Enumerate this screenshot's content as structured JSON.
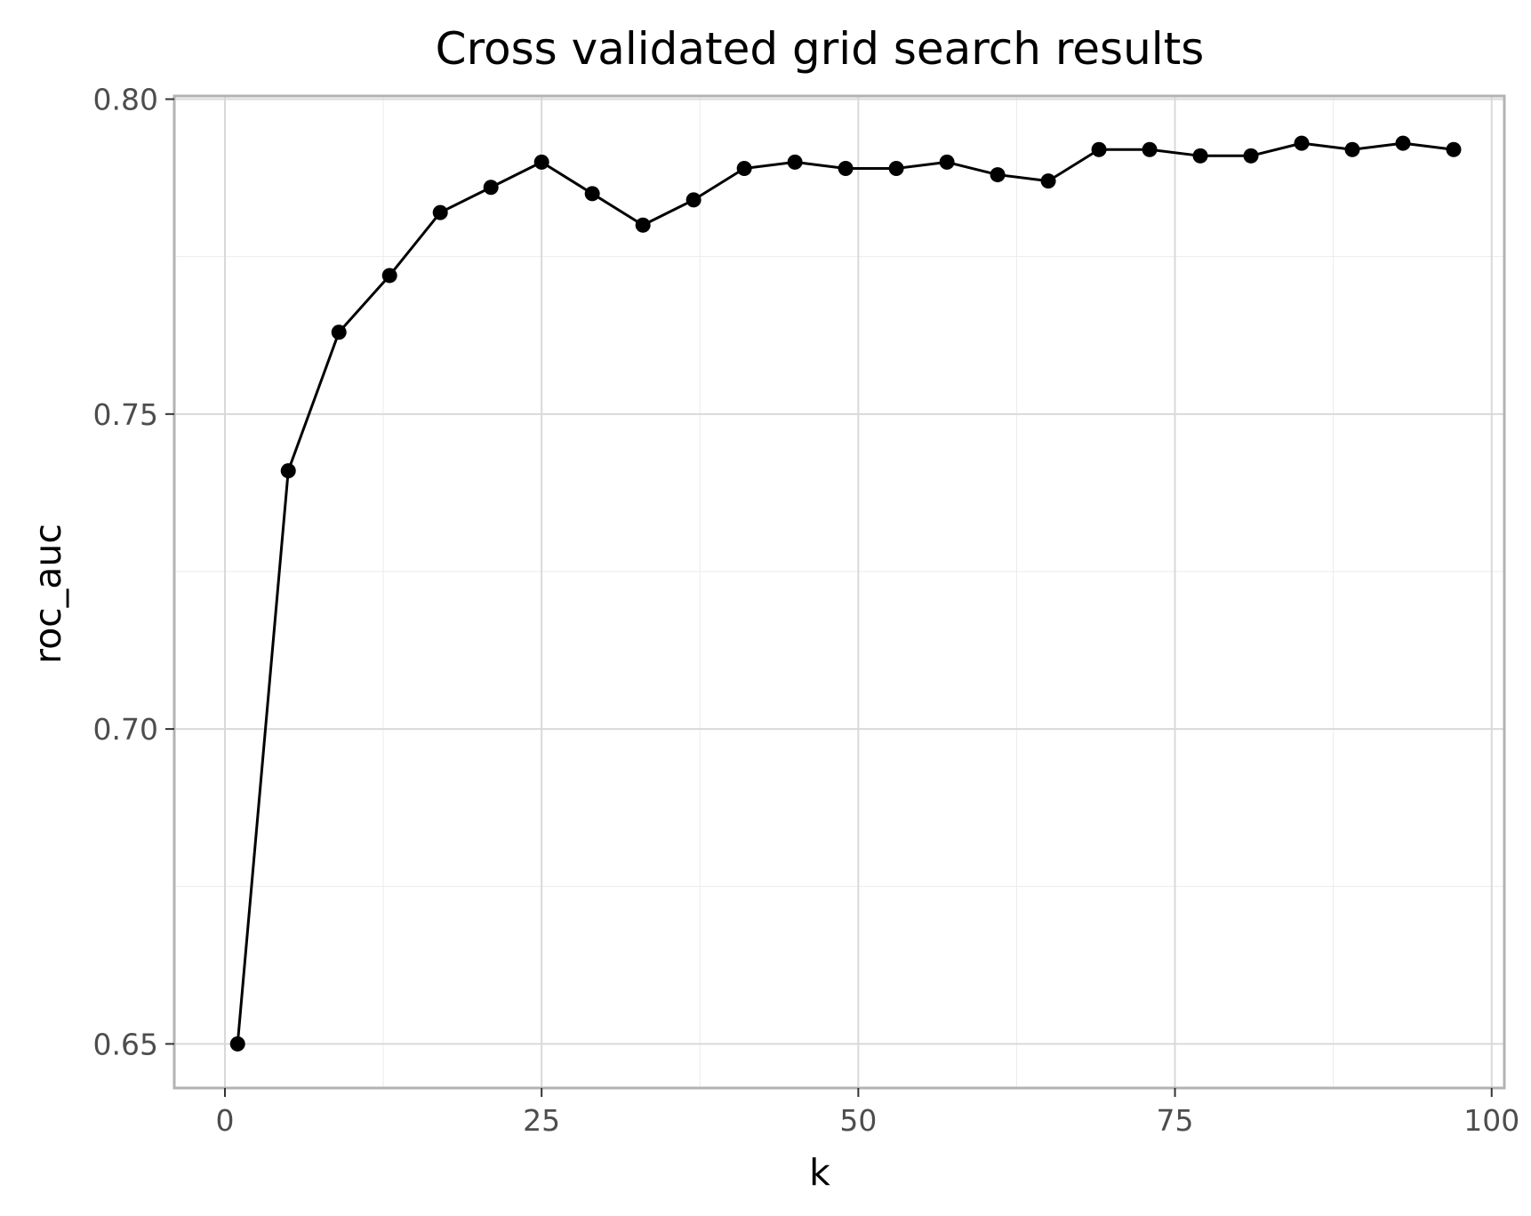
{
  "chart_data": {
    "type": "line",
    "title": "Cross validated grid search results",
    "xlabel": "k",
    "ylabel": "roc_auc",
    "xlim": [
      -4,
      101
    ],
    "ylim": [
      0.643,
      0.8005
    ],
    "x_ticks": [
      0,
      25,
      50,
      75,
      100
    ],
    "x_tick_labels": [
      "0",
      "25",
      "50",
      "75",
      "100"
    ],
    "y_ticks": [
      0.65,
      0.7,
      0.75,
      0.8
    ],
    "y_tick_labels": [
      "0.65",
      "0.70",
      "0.75",
      "0.80"
    ],
    "x_minor_ticks": [
      12.5,
      37.5,
      62.5,
      87.5
    ],
    "y_minor_ticks": [
      0.675,
      0.725,
      0.775
    ],
    "grid": true,
    "markers": true,
    "colors": {
      "line": "#000000",
      "marker": "#000000",
      "grid_major": "#d9d9d9",
      "grid_minor": "#ebebeb",
      "panel_border": "#b3b3b3",
      "tick_text": "#4d4d4d"
    },
    "series": [
      {
        "x": [
          1,
          5,
          9,
          13,
          17,
          21,
          25,
          29,
          33,
          37,
          41,
          45,
          49,
          53,
          57,
          61,
          65,
          69,
          73,
          77,
          81,
          85,
          89,
          93,
          97
        ],
        "y": [
          0.65,
          0.741,
          0.763,
          0.772,
          0.782,
          0.786,
          0.79,
          0.785,
          0.78,
          0.784,
          0.789,
          0.79,
          0.789,
          0.789,
          0.79,
          0.788,
          0.787,
          0.792,
          0.792,
          0.791,
          0.791,
          0.793,
          0.792,
          0.793,
          0.792
        ]
      }
    ]
  }
}
